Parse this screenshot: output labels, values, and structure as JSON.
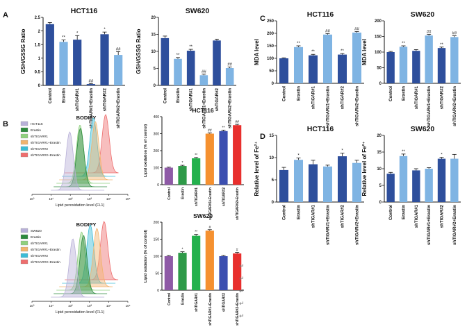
{
  "figure": {
    "panel_letters": [
      "A",
      "B",
      "C",
      "D"
    ],
    "paragraph_mark": "↵"
  },
  "chart_data": [
    {
      "id": "A1",
      "panel": "A",
      "type": "bar",
      "title": "HCT116",
      "ylabel": "GSH/GSSG Ratio",
      "ylim": [
        0,
        2.5
      ],
      "yticks": [
        0,
        0.5,
        1.0,
        1.5,
        2.0,
        2.5
      ],
      "categories": [
        "Control",
        "Erastin",
        "shTIGAR#1",
        "shTIGAR#1+Erastin",
        "shTIGAR#2",
        "shTIGAR#2+Erastin"
      ],
      "values": [
        2.25,
        1.6,
        1.68,
        0.05,
        1.88,
        1.12
      ],
      "errors": [
        0.06,
        0.07,
        0.15,
        0.02,
        0.08,
        0.12
      ],
      "annotations": [
        "",
        "**",
        "*",
        "##",
        "*",
        "##"
      ],
      "colors": [
        "#2e4f9c",
        "#7fb4e3",
        "#2e4f9c",
        "#2e4f9c",
        "#2e4f9c",
        "#7fb4e3"
      ]
    },
    {
      "id": "A2",
      "panel": "A",
      "type": "bar",
      "title": "SW620",
      "ylabel": "GSH/GSSG Ratio",
      "ylim": [
        0,
        20
      ],
      "yticks": [
        0,
        5,
        10,
        15,
        20
      ],
      "categories": [
        "Control",
        "Erastin",
        "shTIGAR#1",
        "shTIGAR#1+Erastin",
        "shTIGAR#2",
        "shTIGAR#2+Erastin"
      ],
      "values": [
        13.9,
        7.8,
        10.2,
        3.0,
        13.2,
        5.1
      ],
      "errors": [
        0.6,
        0.4,
        0.4,
        0.3,
        0.4,
        0.3
      ],
      "annotations": [
        "",
        "**",
        "**",
        "##",
        "",
        "##"
      ],
      "colors": [
        "#2e4f9c",
        "#7fb4e3",
        "#2e4f9c",
        "#7fb4e3",
        "#2e4f9c",
        "#7fb4e3"
      ]
    },
    {
      "id": "C1",
      "panel": "C",
      "type": "bar",
      "title": "HCT116",
      "ylabel": "MDA level",
      "ylim": [
        0,
        250
      ],
      "yticks": [
        0,
        50,
        100,
        150,
        200,
        250
      ],
      "categories": [
        "Control",
        "Erastin",
        "shTIGAR#1",
        "shTIGAR#1+Erastin",
        "shTIGAR#2",
        "shTIGAR#2+Erastin"
      ],
      "values": [
        100,
        145,
        112,
        195,
        115,
        203
      ],
      "errors": [
        2,
        5,
        4,
        4,
        4,
        4
      ],
      "annotations": [
        "",
        "**",
        "**",
        "##",
        "**",
        "##"
      ],
      "colors": [
        "#2e4f9c",
        "#7fb4e3",
        "#2e4f9c",
        "#7fb4e3",
        "#2e4f9c",
        "#7fb4e3"
      ]
    },
    {
      "id": "C2",
      "panel": "C",
      "type": "bar",
      "title": "SW620",
      "ylabel": "MDA level",
      "ylim": [
        0,
        200
      ],
      "yticks": [
        0,
        50,
        100,
        150,
        200
      ],
      "categories": [
        "Control",
        "Erastin",
        "shTIGAR#1",
        "shTIGAR#1+Erastin",
        "shTIGAR#2",
        "shTIGAR#2+Erastin"
      ],
      "values": [
        100,
        117,
        104,
        153,
        113,
        148
      ],
      "errors": [
        2,
        3,
        4,
        4,
        3,
        4
      ],
      "annotations": [
        "",
        "**",
        "",
        "##",
        "**",
        "##"
      ],
      "colors": [
        "#2e4f9c",
        "#7fb4e3",
        "#2e4f9c",
        "#7fb4e3",
        "#2e4f9c",
        "#7fb4e3"
      ]
    },
    {
      "id": "B1",
      "panel": "B",
      "type": "bar",
      "title": "HCT116",
      "ylabel": "Lipid oxidation (% of control)",
      "ylim": [
        0,
        400
      ],
      "yticks": [
        0,
        100,
        200,
        300,
        400
      ],
      "categories": [
        "Control",
        "Erastin",
        "shTIGAR#1",
        "shTIGAR#1+Erastin",
        "shTIGAR#2",
        "shTIGAR#2+Erastin"
      ],
      "values": [
        100,
        110,
        155,
        300,
        315,
        350
      ],
      "errors": [
        3,
        4,
        5,
        5,
        6,
        5
      ],
      "annotations": [
        "",
        "*",
        "**",
        "##",
        "**",
        "##"
      ],
      "colors": [
        "#8e5aa6",
        "#2e9a48",
        "#23b14d",
        "#f59130",
        "#3b4fb0",
        "#e82f2d"
      ]
    },
    {
      "id": "B2",
      "panel": "B",
      "type": "bar",
      "title": "SW620",
      "ylabel": "Lipid oxidation (% of control)",
      "ylim": [
        0,
        200
      ],
      "yticks": [
        0,
        50,
        100,
        150,
        200
      ],
      "categories": [
        "Control",
        "Erastin",
        "shTIGAR#1",
        "shTIGAR#1+Erastin",
        "shTIGAR#2",
        "shTIGAR#2+Erastin"
      ],
      "values": [
        100,
        110,
        160,
        175,
        100,
        108
      ],
      "errors": [
        2,
        3,
        4,
        3,
        2,
        3
      ],
      "annotations": [
        "",
        "*",
        "**",
        "#",
        "",
        "#"
      ],
      "colors": [
        "#8e5aa6",
        "#2e9a48",
        "#23b14d",
        "#f59130",
        "#3b4fb0",
        "#e82f2d"
      ]
    },
    {
      "id": "D1",
      "panel": "D",
      "type": "bar",
      "title": "HCT116",
      "ylabel": "Relative level of Fe²⁺",
      "ylim": [
        0,
        15
      ],
      "yticks": [
        0,
        5,
        10,
        15
      ],
      "categories": [
        "Control",
        "Erastin",
        "shTIGAR#1",
        "shTIGAR#1+Erastin",
        "shTIGAR#2",
        "shTIGAR#2+Erastin"
      ],
      "values": [
        7.2,
        9.5,
        8.5,
        8.0,
        10.3,
        8.8
      ],
      "errors": [
        0.6,
        0.4,
        0.9,
        0.3,
        0.7,
        0.6
      ],
      "annotations": [
        "",
        "*",
        "",
        "",
        "*",
        ""
      ],
      "colors": [
        "#2e4f9c",
        "#7fb4e3",
        "#2e4f9c",
        "#7fb4e3",
        "#2e4f9c",
        "#7fb4e3"
      ]
    },
    {
      "id": "D2",
      "panel": "D",
      "type": "bar",
      "title": "SW620",
      "ylabel": "Relative level of Fe²⁺",
      "ylim": [
        0,
        20
      ],
      "yticks": [
        0,
        5,
        10,
        15,
        20
      ],
      "categories": [
        "Control",
        "Erastin",
        "shTIGAR#1",
        "shTIGAR#1+Erastin",
        "shTIGAR#2",
        "shTIGAR#2+Erastin"
      ],
      "values": [
        8.5,
        13.8,
        9.5,
        10.0,
        13.0,
        13.0
      ],
      "errors": [
        0.4,
        0.6,
        0.5,
        0.3,
        0.4,
        1.3
      ],
      "annotations": [
        "",
        "**",
        "",
        "",
        "*",
        ""
      ],
      "colors": [
        "#2e4f9c",
        "#7fb4e3",
        "#2e4f9c",
        "#7fb4e3",
        "#2e4f9c",
        "#7fb4e3"
      ]
    },
    {
      "id": "B_hist1",
      "panel": "B",
      "type": "area",
      "title": "BODIPY",
      "xlabel": "Lipid peroxidation level (FL1)",
      "xticks": [
        "10⁰",
        "10¹",
        "10²",
        "10³",
        "10⁴",
        "10⁵"
      ],
      "legend": [
        "HCT116",
        "Erastin",
        "shTIGAR#1",
        "shTIGAR#1+Erastin",
        "shTIGAR#2",
        "shTIGAR#2+Erastin"
      ],
      "series_colors": [
        "#b8b0d8",
        "#2d8a3e",
        "#8fd07e",
        "#f1b46e",
        "#3cbcd6",
        "#ee6e6e"
      ],
      "peaks_log": [
        2.4,
        2.9,
        2.7,
        3.5,
        3.2,
        3.8
      ]
    },
    {
      "id": "B_hist2",
      "panel": "B",
      "type": "area",
      "title": "BODIPY",
      "xlabel": "Lipid peroxidation level (FL1)",
      "xticks": [
        "10⁰",
        "10¹",
        "10²",
        "10³",
        "10⁴",
        "10⁵"
      ],
      "legend": [
        "SW620",
        "Erastin",
        "shTIGAR#1",
        "shTIGAR#1+Erastin",
        "shTIGAR#2",
        "shTIGAR#2+Erastin"
      ],
      "series_colors": [
        "#b8b0d8",
        "#2d8a3e",
        "#8fd07e",
        "#f1b46e",
        "#3cbcd6",
        "#ee6e6e"
      ],
      "peaks_log": [
        2.6,
        3.1,
        2.8,
        3.6,
        3.0,
        3.7
      ]
    }
  ]
}
